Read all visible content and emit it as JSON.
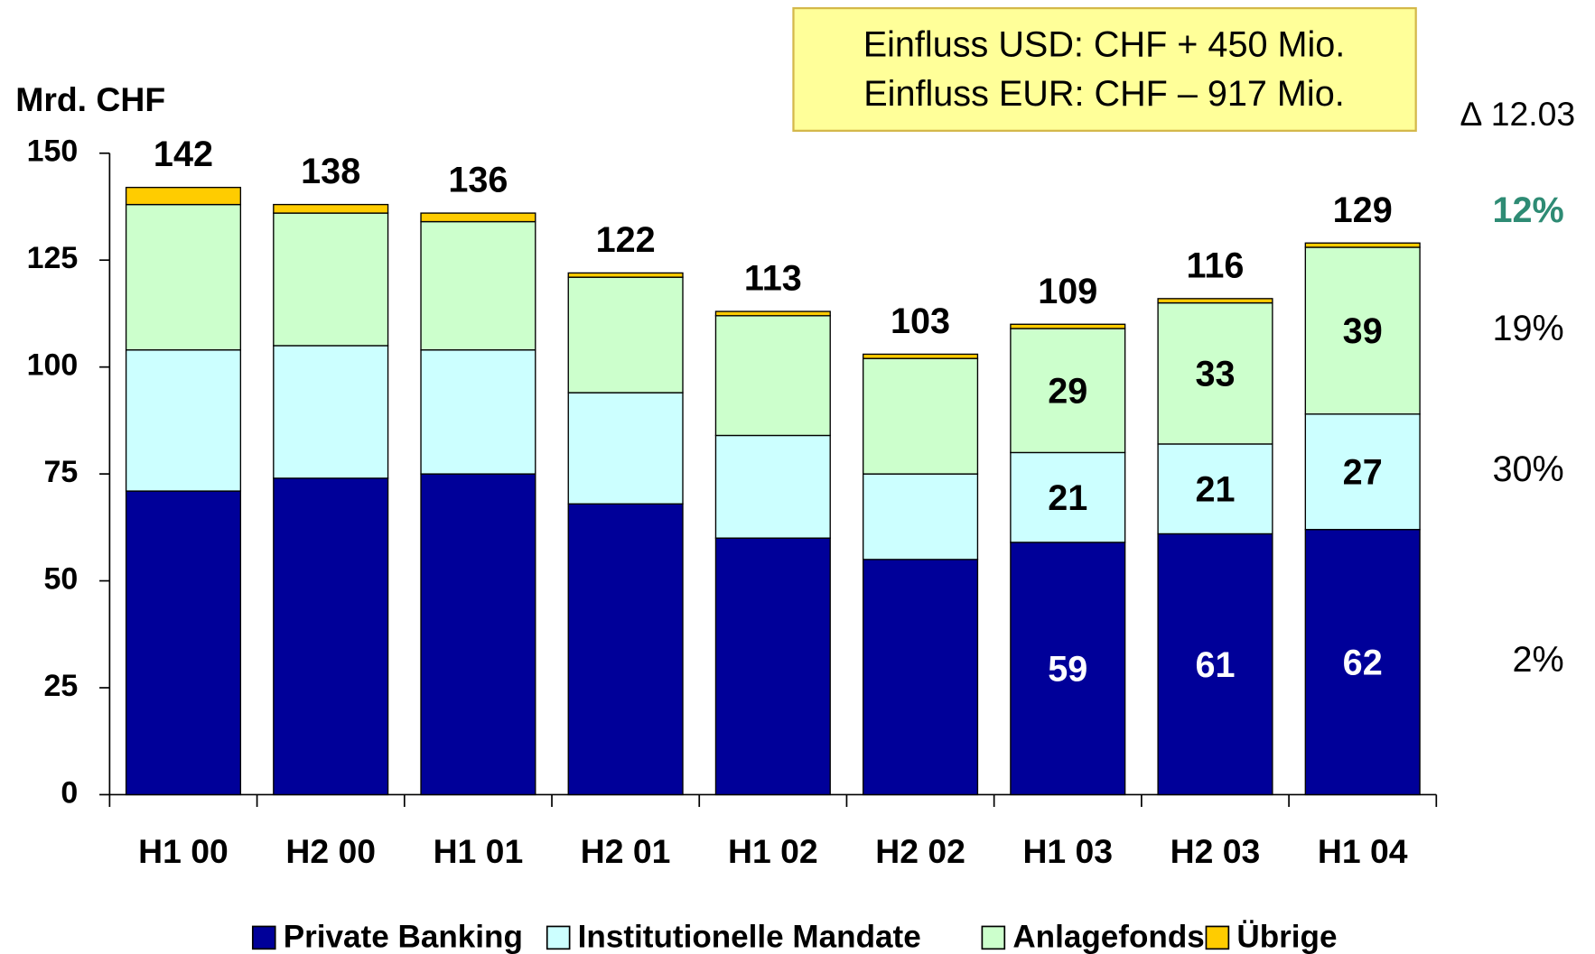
{
  "chart_data": {
    "type": "stacked_bar",
    "y_label": "Mrd. CHF",
    "note_lines": [
      "Einfluss USD: CHF + 450 Mio.",
      "Einfluss EUR: CHF – 917 Mio."
    ],
    "change_header": "∆ 12.03",
    "categories": [
      "H1 00",
      "H2 00",
      "H1 01",
      "H2 01",
      "H1 02",
      "H2 02",
      "H1 03",
      "H2 03",
      "H1 04"
    ],
    "totals": [
      142,
      138,
      136,
      122,
      113,
      103,
      109,
      116,
      129
    ],
    "series": [
      {
        "name": "Private Banking",
        "color": "#000099",
        "label_color": "#ffffff",
        "change": "2%",
        "values": [
          71,
          74,
          75,
          68,
          60,
          55,
          59,
          61,
          62
        ],
        "value_labels": [
          null,
          null,
          null,
          null,
          null,
          null,
          "59",
          "61",
          "62"
        ]
      },
      {
        "name": "Institutionelle Mandate",
        "color": "#ccffff",
        "label_color": "#000000",
        "change": "30%",
        "values": [
          33,
          31,
          29,
          26,
          24,
          20,
          21,
          21,
          27
        ],
        "value_labels": [
          null,
          null,
          null,
          null,
          null,
          null,
          "21",
          "21",
          "27"
        ]
      },
      {
        "name": "Anlagefonds",
        "color": "#ccffcc",
        "label_color": "#000000",
        "change": "19%",
        "values": [
          34,
          31,
          30,
          27,
          28,
          27,
          29,
          33,
          39
        ],
        "value_labels": [
          null,
          null,
          null,
          null,
          null,
          null,
          "29",
          "33",
          "39"
        ]
      },
      {
        "name": "Übrige",
        "color": "#ffcc00",
        "label_color": "#000000",
        "change": "12%",
        "change_color": "#2e8b74",
        "values": [
          4,
          2,
          2,
          1,
          1,
          1,
          1,
          1,
          1
        ],
        "value_labels": [
          null,
          null,
          null,
          null,
          null,
          null,
          null,
          null,
          null
        ]
      }
    ],
    "ylim": [
      0,
      150
    ],
    "yticks": [
      0,
      25,
      50,
      75,
      100,
      125,
      150
    ],
    "legend": "bottom"
  }
}
